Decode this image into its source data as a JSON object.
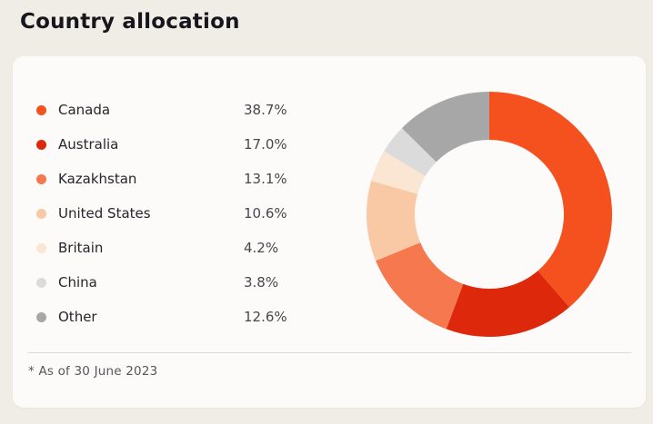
{
  "page_title": "Country allocation",
  "footnote": "* As of 30 June 2023",
  "colors": {
    "page_background": "#F0ECE6",
    "card_background": "#FCFBF9",
    "title_text": "#16161C",
    "label_text": "#26262B",
    "value_text": "#46484D",
    "footnote_text": "#54575C",
    "divider": "#DEDAD4"
  },
  "chart_data": {
    "type": "pie",
    "variant": "donut",
    "title": "Country allocation",
    "categories": [
      "Canada",
      "Australia",
      "Kazakhstan",
      "United States",
      "Britain",
      "China",
      "Other"
    ],
    "values": [
      38.7,
      17.0,
      13.1,
      10.6,
      4.2,
      3.8,
      12.6
    ],
    "value_labels": [
      "38.7%",
      "17.0%",
      "13.1%",
      "10.6%",
      "4.2%",
      "3.8%",
      "12.6%"
    ],
    "segment_colors": [
      "#F4511E",
      "#DE280C",
      "#F5784E",
      "#F8C9A4",
      "#FAE6D2",
      "#DBDBDB",
      "#A7A7A7"
    ],
    "start_angle_deg": 0,
    "direction": "clockwise",
    "inner_radius_ratio": 0.61,
    "legend_position": "left",
    "grid": false
  }
}
